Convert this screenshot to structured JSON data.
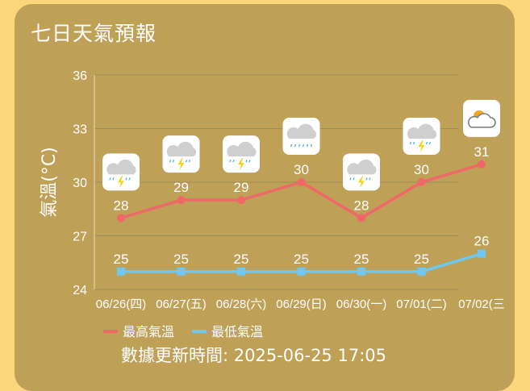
{
  "title": "七日天氣預報",
  "updated": "數據更新時間: 2025-06-25 17:05",
  "chart_data": {
    "type": "line",
    "title": "",
    "xlabel": "",
    "ylabel": "氣溫(°C)",
    "ylim": [
      24,
      36
    ],
    "yticks": [
      24,
      27,
      30,
      33,
      36
    ],
    "grid": true,
    "legend": "bottom",
    "categories": [
      "06/26(四)",
      "06/27(五)",
      "06/28(六)",
      "06/29(日)",
      "06/30(一)",
      "07/01(二)",
      "07/02(三"
    ],
    "icons": [
      "thunderstorm-icon",
      "thunderstorm-icon",
      "thunderstorm-icon",
      "rain-icon",
      "thunderstorm-icon",
      "thunderstorm-icon",
      "partly-cloudy-icon"
    ],
    "series": [
      {
        "name": "最高氣溫",
        "values": [
          28,
          29,
          29,
          30,
          28,
          30,
          31
        ],
        "color": "#ef6868"
      },
      {
        "name": "最低氣溫",
        "values": [
          25,
          25,
          25,
          25,
          25,
          25,
          26
        ],
        "color": "#6ec8f2"
      }
    ]
  }
}
